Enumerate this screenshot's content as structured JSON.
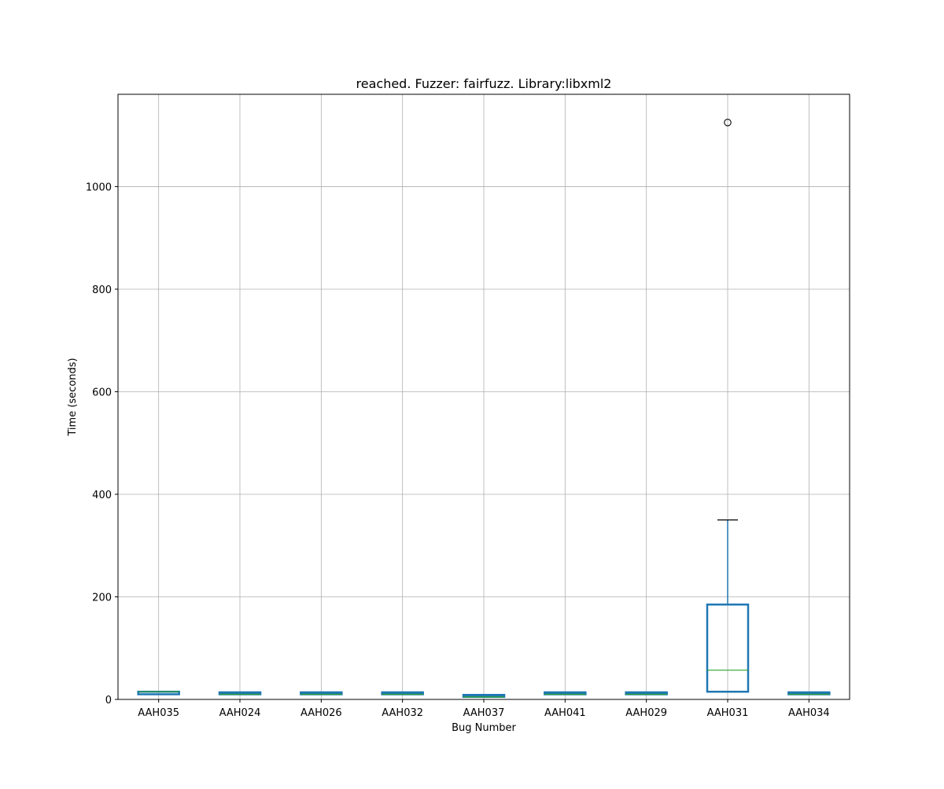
{
  "chart_data": {
    "type": "box",
    "title": "reached. Fuzzer: fairfuzz. Library:libxml2",
    "xlabel": "Bug Number",
    "ylabel": "Time (seconds)",
    "ylim": [
      0,
      1180
    ],
    "yticks": [
      0,
      200,
      400,
      600,
      800,
      1000
    ],
    "grid": true,
    "categories": [
      "AAH035",
      "AAH024",
      "AAH026",
      "AAH032",
      "AAH037",
      "AAH041",
      "AAH029",
      "AAH031",
      "AAH034"
    ],
    "boxes": [
      {
        "category": "AAH035",
        "whisker_low": 10,
        "q1": 10,
        "median": 15,
        "q3": 15,
        "whisker_high": 15,
        "outliers": []
      },
      {
        "category": "AAH024",
        "whisker_low": 10,
        "q1": 10,
        "median": 10,
        "q3": 10,
        "whisker_high": 10,
        "outliers": []
      },
      {
        "category": "AAH026",
        "whisker_low": 10,
        "q1": 10,
        "median": 10,
        "q3": 10,
        "whisker_high": 10,
        "outliers": []
      },
      {
        "category": "AAH032",
        "whisker_low": 10,
        "q1": 10,
        "median": 10,
        "q3": 10,
        "whisker_high": 10,
        "outliers": []
      },
      {
        "category": "AAH037",
        "whisker_low": 5,
        "q1": 5,
        "median": 5,
        "q3": 5,
        "whisker_high": 5,
        "outliers": []
      },
      {
        "category": "AAH041",
        "whisker_low": 10,
        "q1": 10,
        "median": 10,
        "q3": 10,
        "whisker_high": 10,
        "outliers": []
      },
      {
        "category": "AAH029",
        "whisker_low": 10,
        "q1": 10,
        "median": 10,
        "q3": 10,
        "whisker_high": 10,
        "outliers": []
      },
      {
        "category": "AAH031",
        "whisker_low": 15,
        "q1": 15,
        "median": 57,
        "q3": 185,
        "whisker_high": 350,
        "outliers": [
          1125
        ]
      },
      {
        "category": "AAH034",
        "whisker_low": 10,
        "q1": 10,
        "median": 10,
        "q3": 10,
        "whisker_high": 10,
        "outliers": []
      }
    ],
    "colors": {
      "box": "#1f77b4",
      "median": "#2ca02c",
      "whisker_cap": "#000000",
      "grid": "#b0b0b0",
      "axes": "#000000"
    }
  }
}
